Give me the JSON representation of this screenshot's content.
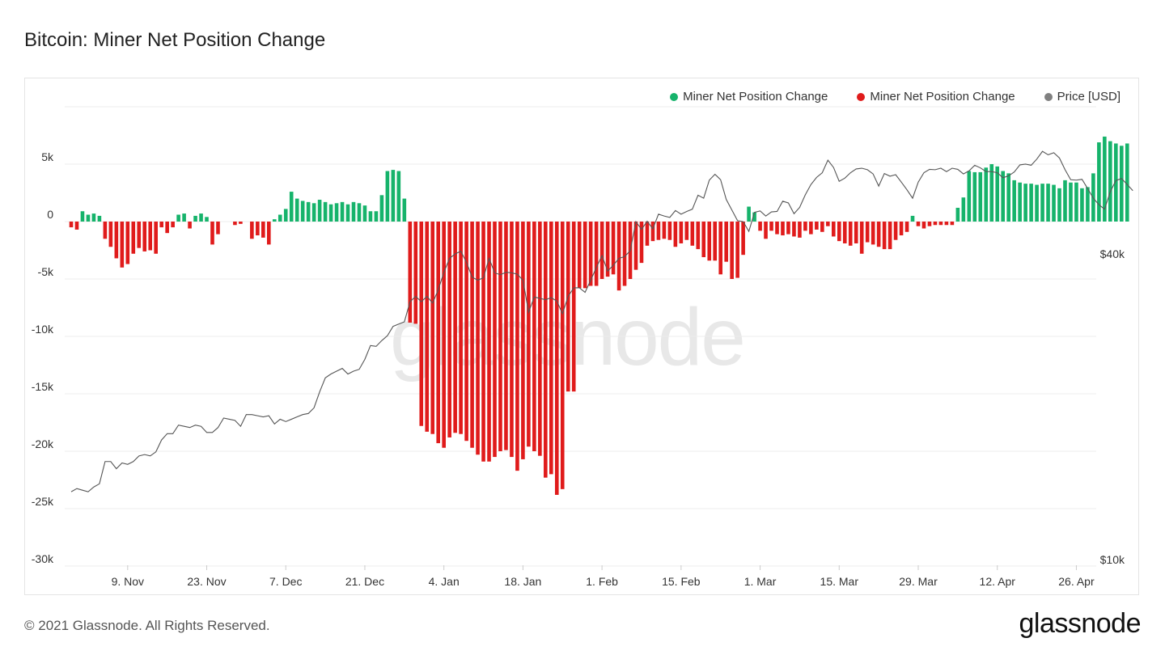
{
  "title": "Bitcoin: Miner Net Position Change",
  "footer": "© 2021 Glassnode. All Rights Reserved.",
  "logo": "glassnode",
  "watermark": "glassnode",
  "colors": {
    "positive": "#16b36b",
    "negative": "#e01b1b",
    "price": "#808080"
  },
  "legend": [
    {
      "label": "Miner Net Position Change",
      "color": "#16b36b"
    },
    {
      "label": "Miner Net Position Change",
      "color": "#e01b1b"
    },
    {
      "label": "Price [USD]",
      "color": "#808080"
    }
  ],
  "chart_data": {
    "type": "bar",
    "y_axis": {
      "ylim": [
        -30000,
        10000
      ],
      "ticks": [
        5000,
        0,
        -5000,
        -10000,
        -15000,
        -20000,
        -25000,
        -30000
      ],
      "tick_labels": [
        "5k",
        "0",
        "-5k",
        "-10k",
        "-15k",
        "-20k",
        "-25k",
        "-30k"
      ]
    },
    "price_axis": {
      "scale": "log",
      "ticks": [
        40000,
        10000
      ],
      "tick_labels": [
        "$40k",
        "$10k"
      ]
    },
    "x_axis": {
      "start": "2020-10-30",
      "tick_labels": [
        "9. Nov",
        "23. Nov",
        "7. Dec",
        "21. Dec",
        "4. Jan",
        "18. Jan",
        "1. Feb",
        "15. Feb",
        "1. Mar",
        "15. Mar",
        "29. Mar",
        "12. Apr",
        "26. Apr"
      ],
      "tick_dates": [
        "2020-11-09",
        "2020-11-23",
        "2020-12-07",
        "2020-12-21",
        "2021-01-04",
        "2021-01-18",
        "2021-02-01",
        "2021-02-15",
        "2021-03-01",
        "2021-03-15",
        "2021-03-29",
        "2021-04-12",
        "2021-04-26"
      ]
    },
    "series": [
      {
        "name": "Miner Net Position Change",
        "values": [
          -500,
          -700,
          900,
          600,
          700,
          500,
          -1500,
          -2200,
          -3200,
          -4000,
          -3700,
          -2800,
          -2300,
          -2600,
          -2500,
          -2800,
          -500,
          -1000,
          -500,
          600,
          700,
          -600,
          500,
          700,
          400,
          -2000,
          -1100,
          0,
          0,
          -300,
          -200,
          0,
          -1500,
          -1200,
          -1400,
          -2000,
          200,
          600,
          1100,
          2600,
          2000,
          1800,
          1700,
          1600,
          1900,
          1700,
          1500,
          1600,
          1700,
          1500,
          1700,
          1600,
          1400,
          900,
          900,
          2300,
          4400,
          4500,
          4400,
          2000,
          -8800,
          -8900,
          -17800,
          -18300,
          -18500,
          -19300,
          -19700,
          -18800,
          -18400,
          -18500,
          -19100,
          -19700,
          -20300,
          -20900,
          -20900,
          -20500,
          -20000,
          -19900,
          -20500,
          -21700,
          -20700,
          -19600,
          -20000,
          -20400,
          -22300,
          -22000,
          -23800,
          -23300,
          -14800,
          -14800,
          -5800,
          -5800,
          -5600,
          -5600,
          -5000,
          -4800,
          -4600,
          -6000,
          -5600,
          -5000,
          -4200,
          -3600,
          -2100,
          -1700,
          -1600,
          -1500,
          -1600,
          -2200,
          -1900,
          -1600,
          -2100,
          -2400,
          -3100,
          -3400,
          -3400,
          -4600,
          -3500,
          -5000,
          -4900,
          -2900,
          1300,
          800,
          -800,
          -1500,
          -800,
          -1100,
          -1200,
          -1100,
          -1300,
          -1400,
          -800,
          -1100,
          -700,
          -900,
          -400,
          -1300,
          -1700,
          -1900,
          -2100,
          -1900,
          -2800,
          -1800,
          -2000,
          -2200,
          -2400,
          -2400,
          -1600,
          -1200,
          -900,
          500,
          -400,
          -600,
          -400,
          -300,
          -300,
          -300,
          -300,
          1200,
          2100,
          4400,
          4300,
          4300,
          4700,
          5000,
          4800,
          4400,
          4200,
          3600,
          3400,
          3300,
          3300,
          3200,
          3300,
          3300,
          3200,
          2900,
          3600,
          3400,
          3400,
          2900,
          3000,
          4200,
          6900,
          7400,
          7000,
          6800,
          6600,
          6800
        ]
      },
      {
        "name": "Price [USD]",
        "values": [
          13600,
          13800,
          13700,
          13600,
          13900,
          14100,
          15600,
          15600,
          15100,
          15500,
          15400,
          15600,
          16000,
          16100,
          16000,
          16300,
          17200,
          17700,
          17700,
          18400,
          18300,
          18200,
          18400,
          18300,
          17800,
          17800,
          18200,
          19000,
          18900,
          18800,
          18300,
          19300,
          19300,
          19200,
          19100,
          19200,
          18500,
          18900,
          18700,
          18900,
          19100,
          19300,
          19400,
          19900,
          21400,
          22800,
          23200,
          23500,
          23800,
          23200,
          23500,
          23700,
          24800,
          26400,
          26300,
          27000,
          27600,
          28800,
          29100,
          29400,
          32200,
          33000,
          32200,
          33000,
          32000,
          34000,
          36800,
          39200,
          40000,
          40500,
          38500,
          36000,
          35500,
          35900,
          39200,
          36700,
          36400,
          36800,
          36700,
          36500,
          35500,
          30700,
          32900,
          32700,
          32500,
          32800,
          32300,
          30500,
          33000,
          34300,
          34300,
          33600,
          35500,
          37600,
          39700,
          37000,
          38000,
          39200,
          39500,
          40600,
          46300,
          44700,
          46400,
          44800,
          47900,
          47500,
          47200,
          48700,
          47900,
          48500,
          49000,
          52200,
          51500,
          55900,
          57400,
          56000,
          51200,
          48800,
          46500,
          46300,
          44300,
          48300,
          48600,
          47500,
          48400,
          48500,
          50800,
          50400,
          48000,
          49400,
          52300,
          54800,
          56600,
          57800,
          61200,
          59200,
          55600,
          56400,
          57800,
          58800,
          59000,
          58600,
          57500,
          54400,
          57600,
          56900,
          57300,
          55400,
          53500,
          51500,
          55400,
          57800,
          58700,
          58600,
          59000,
          58100,
          59000,
          58700,
          57500,
          58300,
          59800,
          59100,
          58100,
          58100,
          57800,
          56500,
          57000,
          58000,
          59900,
          60100,
          59800,
          61500,
          63700,
          62700,
          63300,
          61800,
          58600,
          56000,
          55900,
          56100,
          53800,
          51500,
          50000,
          49000,
          53000,
          55800,
          56300,
          54800,
          53300
        ]
      }
    ]
  }
}
